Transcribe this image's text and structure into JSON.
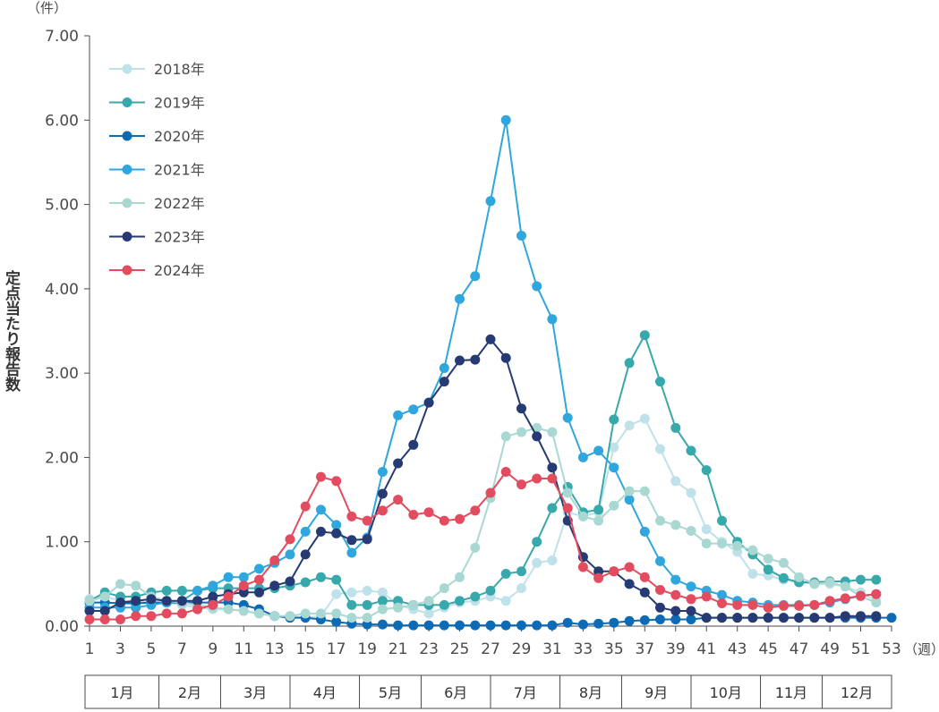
{
  "chart_data": {
    "type": "line",
    "title": "",
    "ylabel": "定点当たり報告数",
    "y_unit": "（件）",
    "x_unit": "（週）",
    "ylim": [
      0,
      7
    ],
    "yticks": [
      "0.00",
      "1.00",
      "2.00",
      "3.00",
      "4.00",
      "5.00",
      "6.00",
      "7.00"
    ],
    "xlim": [
      1,
      53
    ],
    "xticks": [
      1,
      3,
      5,
      7,
      9,
      11,
      13,
      15,
      17,
      19,
      21,
      23,
      25,
      27,
      29,
      31,
      33,
      35,
      37,
      39,
      41,
      43,
      45,
      47,
      49,
      51,
      53
    ],
    "months": [
      {
        "label": "1月",
        "start": 1,
        "end": 5.5
      },
      {
        "label": "2月",
        "start": 5.5,
        "end": 9.5
      },
      {
        "label": "3月",
        "start": 9.5,
        "end": 14
      },
      {
        "label": "4月",
        "start": 14,
        "end": 18.5
      },
      {
        "label": "5月",
        "start": 18.5,
        "end": 22.5
      },
      {
        "label": "6月",
        "start": 22.5,
        "end": 27
      },
      {
        "label": "7月",
        "start": 27,
        "end": 31.5
      },
      {
        "label": "8月",
        "start": 31.5,
        "end": 35.5
      },
      {
        "label": "9月",
        "start": 35.5,
        "end": 40
      },
      {
        "label": "10月",
        "start": 40,
        "end": 44.5
      },
      {
        "label": "11月",
        "start": 44.5,
        "end": 48.5
      },
      {
        "label": "12月",
        "start": 48.5,
        "end": 53
      }
    ],
    "legend_position": "top-left",
    "grid": false,
    "series": [
      {
        "name": "2018年",
        "color": "#bfe1ea",
        "start_week": 1,
        "values": [
          0.32,
          0.35,
          0.3,
          0.3,
          0.28,
          0.28,
          0.25,
          0.22,
          0.2,
          0.2,
          0.18,
          0.15,
          0.12,
          0.12,
          0.1,
          0.12,
          0.38,
          0.4,
          0.42,
          0.4,
          0.25,
          0.2,
          0.15,
          0.22,
          0.28,
          0.3,
          0.35,
          0.3,
          0.45,
          0.75,
          0.78,
          1.35,
          1.3,
          1.35,
          2.12,
          2.38,
          2.46,
          2.1,
          1.72,
          1.58,
          1.15,
          1.0,
          0.88,
          0.62,
          0.6,
          0.55,
          0.52,
          0.5,
          0.5,
          0.47,
          0.4,
          0.3
        ]
      },
      {
        "name": "2019年",
        "color": "#37a8ab",
        "start_week": 1,
        "values": [
          0.3,
          0.4,
          0.35,
          0.35,
          0.4,
          0.42,
          0.42,
          0.42,
          0.45,
          0.45,
          0.45,
          0.45,
          0.45,
          0.48,
          0.52,
          0.58,
          0.55,
          0.25,
          0.25,
          0.3,
          0.3,
          0.25,
          0.25,
          0.25,
          0.3,
          0.35,
          0.42,
          0.62,
          0.65,
          1.0,
          1.4,
          1.65,
          1.35,
          1.38,
          2.45,
          3.12,
          3.45,
          2.9,
          2.35,
          2.08,
          1.85,
          1.25,
          1.0,
          0.85,
          0.67,
          0.57,
          0.52,
          0.52,
          0.53,
          0.53,
          0.55,
          0.55
        ]
      },
      {
        "name": "2020年",
        "color": "#0d6ab4",
        "start_week": 1,
        "values": [
          0.28,
          0.28,
          0.27,
          0.27,
          0.28,
          0.28,
          0.28,
          0.28,
          0.28,
          0.28,
          0.25,
          0.2,
          0.12,
          0.1,
          0.1,
          0.08,
          0.05,
          0.03,
          0.02,
          0.02,
          0.01,
          0.01,
          0.01,
          0.01,
          0.01,
          0.01,
          0.01,
          0.01,
          0.01,
          0.01,
          0.01,
          0.04,
          0.02,
          0.03,
          0.04,
          0.06,
          0.07,
          0.08,
          0.08,
          0.08,
          0.1,
          0.1,
          0.1,
          0.1,
          0.1,
          0.1,
          0.1,
          0.1,
          0.1,
          0.1,
          0.1,
          0.1,
          0.1
        ]
      },
      {
        "name": "2021年",
        "color": "#2fa6dd",
        "start_week": 1,
        "values": [
          0.22,
          0.22,
          0.22,
          0.22,
          0.25,
          0.28,
          0.3,
          0.42,
          0.48,
          0.58,
          0.58,
          0.68,
          0.75,
          0.85,
          1.12,
          1.38,
          1.2,
          0.87,
          1.05,
          1.83,
          2.5,
          2.57,
          2.65,
          3.06,
          3.88,
          4.15,
          5.04,
          6.0,
          4.63,
          4.03,
          3.64,
          2.47,
          2.0,
          2.08,
          1.88,
          1.5,
          1.12,
          0.77,
          0.55,
          0.47,
          0.42,
          0.37,
          0.3,
          0.28,
          0.25,
          0.25,
          0.25,
          0.25,
          0.28,
          0.32,
          0.36,
          0.38
        ]
      },
      {
        "name": "2022年",
        "color": "#a9d8d2",
        "start_week": 1,
        "values": [
          0.3,
          0.35,
          0.5,
          0.48,
          0.35,
          0.3,
          0.28,
          0.25,
          0.22,
          0.2,
          0.18,
          0.15,
          0.12,
          0.12,
          0.15,
          0.15,
          0.15,
          0.1,
          0.1,
          0.2,
          0.22,
          0.25,
          0.3,
          0.45,
          0.58,
          0.93,
          1.52,
          2.25,
          2.3,
          2.35,
          2.3,
          1.58,
          1.3,
          1.25,
          1.43,
          1.6,
          1.6,
          1.25,
          1.2,
          1.13,
          0.98,
          0.98,
          0.95,
          0.9,
          0.8,
          0.75,
          0.58,
          0.5,
          0.52,
          0.47,
          0.35,
          0.28
        ]
      },
      {
        "name": "2023年",
        "color": "#263a73",
        "start_week": 1,
        "values": [
          0.18,
          0.18,
          0.28,
          0.3,
          0.32,
          0.3,
          0.3,
          0.3,
          0.35,
          0.38,
          0.4,
          0.4,
          0.48,
          0.53,
          0.85,
          1.12,
          1.1,
          1.02,
          1.03,
          1.57,
          1.93,
          2.15,
          2.65,
          2.9,
          3.15,
          3.16,
          3.4,
          3.18,
          2.58,
          2.25,
          1.88,
          1.25,
          0.82,
          0.65,
          0.65,
          0.5,
          0.4,
          0.22,
          0.18,
          0.18,
          0.1,
          0.1,
          0.1,
          0.1,
          0.1,
          0.1,
          0.1,
          0.1,
          0.1,
          0.12,
          0.12,
          0.12
        ]
      },
      {
        "name": "2024年",
        "color": "#e34b5f",
        "start_week": 1,
        "values": [
          0.08,
          0.08,
          0.08,
          0.12,
          0.12,
          0.15,
          0.15,
          0.2,
          0.25,
          0.35,
          0.48,
          0.55,
          0.78,
          1.03,
          1.42,
          1.77,
          1.72,
          1.3,
          1.25,
          1.37,
          1.5,
          1.32,
          1.35,
          1.25,
          1.27,
          1.37,
          1.58,
          1.83,
          1.68,
          1.75,
          1.75,
          1.4,
          0.7,
          0.57,
          0.65,
          0.7,
          0.58,
          0.43,
          0.37,
          0.32,
          0.35,
          0.27,
          0.25,
          0.25,
          0.22,
          0.24,
          0.24,
          0.25,
          0.3,
          0.33,
          0.36,
          0.38
        ]
      }
    ]
  }
}
